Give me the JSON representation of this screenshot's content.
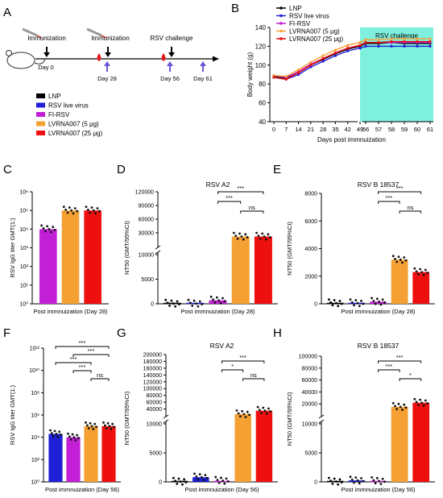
{
  "colors": {
    "LNP": "#000000",
    "RSV live virus": "#1f1fd6",
    "FI-RSV": "#c21fd6",
    "LVRNA007 (5 μg)": "#f5a033",
    "LVRNA007 (25 μg)": "#ee0f0f",
    "challenge_band": "#7ff0de"
  },
  "panel_a": {
    "letter": "A",
    "timeline_labels": [
      {
        "text": "Immunization",
        "day": "Day 0"
      },
      {
        "text": "Immunization",
        "day": "Day 28"
      },
      {
        "text": "RSV challenge",
        "day": "Day 56"
      },
      {
        "text": "",
        "day": "Day 61"
      }
    ],
    "legend": [
      "LNP",
      "RSV live virus",
      "FI-RSV",
      "LVRNA007 (5 μg)",
      "LVRNA007 (25 μg)"
    ]
  },
  "chart_data": [
    {
      "panel": "B",
      "type": "line",
      "title": "",
      "ylabel": "Body weight (g)",
      "xlabel": "Days post immnuization",
      "ylim": [
        40,
        140
      ],
      "yticks": [
        40,
        60,
        80,
        100,
        120,
        140
      ],
      "x": [
        "0",
        "7",
        "14",
        "21",
        "28",
        "35",
        "42",
        "49",
        "56",
        "57",
        "58",
        "59",
        "60",
        "61"
      ],
      "band_label": "RSV challenge",
      "band_range": [
        "56",
        "61"
      ],
      "legend": [
        "LNP",
        "RSV live virus",
        "FI-RSV",
        "LVRNA007 (5 μg)",
        "LVRNA007 (25 μg)"
      ],
      "series": [
        {
          "name": "LNP",
          "values": [
            88,
            86,
            92,
            100,
            106,
            112,
            117,
            120,
            123,
            123,
            124,
            123,
            123,
            123
          ]
        },
        {
          "name": "RSV live virus",
          "values": [
            87,
            85,
            90,
            98,
            104,
            110,
            115,
            118,
            120,
            120,
            120,
            120,
            120,
            120
          ]
        },
        {
          "name": "FI-RSV",
          "values": [
            89,
            87,
            93,
            101,
            107,
            113,
            118,
            121,
            124,
            124,
            124,
            124,
            124,
            124
          ]
        },
        {
          "name": "LVRNA007 (5 μg)",
          "values": [
            89,
            88,
            95,
            103,
            110,
            116,
            121,
            124,
            127,
            127,
            128,
            128,
            128,
            128
          ]
        },
        {
          "name": "LVRNA007 (25 μg)",
          "values": [
            87,
            85,
            92,
            100,
            107,
            113,
            118,
            121,
            124,
            124,
            125,
            125,
            125,
            125
          ]
        }
      ]
    },
    {
      "panel": "C",
      "type": "bar",
      "title": "",
      "ylabel": "RSV IgG titer GMT(1:)",
      "xlabel": "Post immnuization (Day 28)",
      "yscale": "log",
      "ylim": [
        1,
        1000000
      ],
      "ytick_labels": [
        "10⁰",
        "10¹",
        "10²",
        "10³",
        "10⁴",
        "10⁵",
        "10⁶"
      ],
      "categories": [
        "FI-RSV",
        "LVRNA007 (5 μg)",
        "LVRNA007 (25 μg)"
      ],
      "values": [
        10000,
        100000,
        100000
      ]
    },
    {
      "panel": "D",
      "type": "bar",
      "title": "RSV A2",
      "ylabel": "NT50 (GMT/95%CI)",
      "xlabel": "Post immnuization (Day 28)",
      "axis_break": true,
      "ytick_labels_lower": [
        "0",
        "5000",
        "10000"
      ],
      "ytick_labels_upper": [
        "30000",
        "60000",
        "90000",
        "120000"
      ],
      "categories": [
        "LNP",
        "RSV live virus",
        "FI-RSV",
        "LVRNA007 (5 μg)",
        "LVRNA007 (25 μg)"
      ],
      "values": [
        50,
        50,
        700,
        22000,
        22000
      ],
      "significance": [
        {
          "from": 3,
          "to": 4,
          "label": "ns"
        },
        {
          "from": 2,
          "to": 3,
          "label": "***"
        },
        {
          "from": 2,
          "to": 4,
          "label": "***"
        }
      ]
    },
    {
      "panel": "E",
      "type": "bar",
      "title": "RSV B 18537",
      "ylabel": "NT50 (GMT/95%CI)",
      "xlabel": "Post immnuization (Day 28)",
      "ylim": [
        0,
        8000
      ],
      "ytick_labels": [
        "0",
        "2000",
        "4000",
        "6000",
        "8000"
      ],
      "categories": [
        "LNP",
        "RSV live virus",
        "FI-RSV",
        "LVRNA007 (5 μg)",
        "LVRNA007 (25 μg)"
      ],
      "values": [
        50,
        50,
        150,
        3200,
        2300
      ],
      "significance": [
        {
          "from": 3,
          "to": 4,
          "label": "ns"
        },
        {
          "from": 2,
          "to": 3,
          "label": "***"
        },
        {
          "from": 2,
          "to": 4,
          "label": "***"
        }
      ]
    },
    {
      "panel": "F",
      "type": "bar",
      "title": "",
      "ylabel": "RSV IgG titer GMT(1:)",
      "xlabel": "Post immnuization (Day 56)",
      "yscale": "log",
      "ylim": [
        1,
        1000000000000.0
      ],
      "ytick_labels": [
        "10⁰",
        "10²",
        "10⁴",
        "10⁶",
        "10⁸",
        "10¹⁰",
        "10¹²"
      ],
      "categories": [
        "RSV live virus",
        "FI-RSV",
        "LVRNA007 (5 μg)",
        "LVRNA007 (25 μg)"
      ],
      "values": [
        20000,
        10000,
        100000,
        100000
      ],
      "significance": [
        {
          "from": 2,
          "to": 3,
          "label": "ns"
        },
        {
          "from": 1,
          "to": 2,
          "label": "***"
        },
        {
          "from": 0,
          "to": 2,
          "label": "***"
        },
        {
          "from": 1,
          "to": 3,
          "label": "***"
        },
        {
          "from": 0,
          "to": 3,
          "label": "***"
        }
      ]
    },
    {
      "panel": "G",
      "type": "bar",
      "title": "RSV A2",
      "ylabel": "NT50 (GMT/95%CI)",
      "xlabel": "Post immnuization (Day 56)",
      "axis_break": true,
      "ytick_labels_lower": [
        "0",
        "5000",
        "10000"
      ],
      "ytick_labels_upper": [
        "40000",
        "60000",
        "80000",
        "100000",
        "120000",
        "140000",
        "160000",
        "180000",
        "200000"
      ],
      "categories": [
        "LNP",
        "RSV live virus",
        "FI-RSV",
        "LVRNA007 (5 μg)",
        "LVRNA007 (25 μg)"
      ],
      "values": [
        50,
        800,
        200,
        25000,
        35000
      ],
      "significance": [
        {
          "from": 3,
          "to": 4,
          "label": "ns"
        },
        {
          "from": 2,
          "to": 3,
          "label": "*"
        },
        {
          "from": 2,
          "to": 4,
          "label": "***"
        }
      ]
    },
    {
      "panel": "H",
      "type": "bar",
      "title": "RSV B 18537",
      "ylabel": "NT50 (GMT/95%CI)",
      "xlabel": "Post immnuization (Day 56)",
      "axis_break": true,
      "ytick_labels_lower": [
        "0",
        "5000",
        "10000"
      ],
      "ytick_labels_upper": [
        "20000",
        "40000",
        "60000",
        "80000",
        "100000"
      ],
      "categories": [
        "LNP",
        "RSV live virus",
        "FI-RSV",
        "LVRNA007 (5 μg)",
        "LVRNA007 (25 μg)"
      ],
      "values": [
        50,
        250,
        150,
        15000,
        22000
      ],
      "significance": [
        {
          "from": 3,
          "to": 4,
          "label": "*"
        },
        {
          "from": 2,
          "to": 3,
          "label": "***"
        },
        {
          "from": 2,
          "to": 4,
          "label": "***"
        }
      ]
    }
  ]
}
